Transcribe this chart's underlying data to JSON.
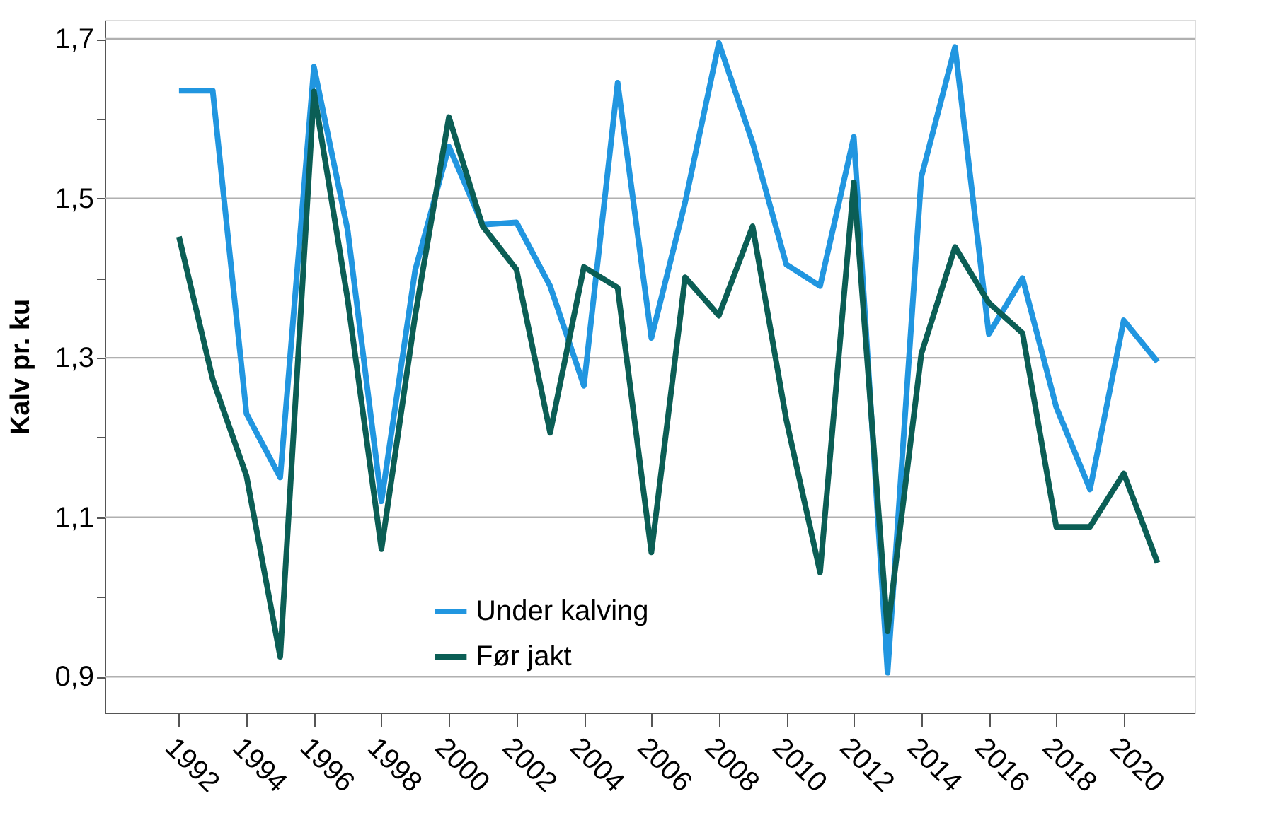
{
  "chart_data": {
    "type": "line",
    "ylabel": "Kalv pr. ku",
    "x": [
      1992,
      1993,
      1994,
      1995,
      1996,
      1997,
      1998,
      1999,
      2000,
      2001,
      2002,
      2003,
      2004,
      2005,
      2006,
      2007,
      2008,
      2009,
      2010,
      2011,
      2012,
      2013,
      2014,
      2015,
      2016,
      2017,
      2018,
      2019,
      2020,
      2021
    ],
    "series": [
      {
        "name": "Under kalving",
        "color": "#2196e0",
        "values": [
          1.635,
          1.635,
          1.23,
          1.15,
          1.665,
          1.46,
          1.12,
          1.41,
          1.565,
          1.467,
          1.47,
          1.39,
          1.265,
          1.645,
          1.325,
          1.495,
          1.695,
          1.57,
          1.417,
          1.39,
          1.577,
          0.905,
          1.527,
          1.69,
          1.33,
          1.4,
          1.238,
          1.135,
          1.347,
          1.295
        ]
      },
      {
        "name": "Før jakt",
        "color": "#0b5e55",
        "values": [
          1.452,
          1.273,
          1.152,
          0.925,
          1.634,
          1.373,
          1.06,
          1.353,
          1.602,
          1.465,
          1.411,
          1.206,
          1.414,
          1.388,
          1.056,
          1.401,
          1.353,
          1.465,
          1.222,
          1.031,
          1.52,
          0.957,
          1.305,
          1.439,
          1.369,
          1.331,
          1.088,
          1.088,
          1.155,
          1.043
        ]
      }
    ],
    "xlim": [
      1989.8,
      2022.1
    ],
    "xticks": [
      1992,
      1994,
      1996,
      1998,
      2000,
      2002,
      2004,
      2006,
      2008,
      2010,
      2012,
      2014,
      2016,
      2018,
      2020
    ],
    "ylim": [
      0.855,
      1.724
    ],
    "yticks": [
      {
        "value": 0.9,
        "label": "0,9"
      },
      {
        "value": 1.0,
        "label": null
      },
      {
        "value": 1.1,
        "label": "1,1"
      },
      {
        "value": 1.2,
        "label": null
      },
      {
        "value": 1.3,
        "label": "1,3"
      },
      {
        "value": 1.4,
        "label": null
      },
      {
        "value": 1.5,
        "label": "1,5"
      },
      {
        "value": 1.6,
        "label": null
      },
      {
        "value": 1.7,
        "label": "1,7"
      }
    ],
    "grid": "y",
    "legend": "bottom",
    "marker": "none",
    "line_style": "solid"
  }
}
